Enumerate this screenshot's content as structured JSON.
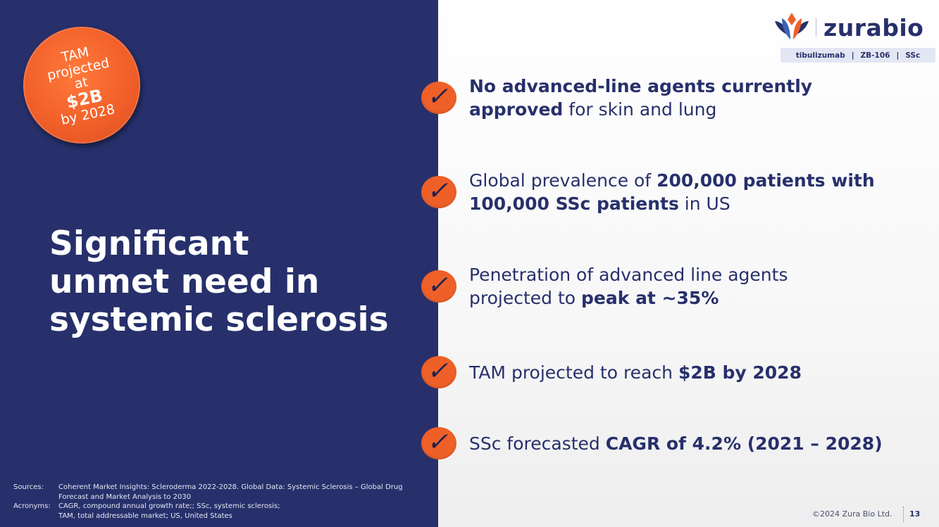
{
  "badge": {
    "line1": "TAM",
    "line2": "projected",
    "line3": "at",
    "line4": "$2B",
    "line5": "by 2028"
  },
  "headline": {
    "line1": "Significant",
    "line2": "unmet need in",
    "line3": "systemic sclerosis"
  },
  "footnotes": {
    "sources_label": "Sources:",
    "sources_text": "Coherent Market Insights: Scleroderma 2022-2028. Global Data: Systemic Sclerosis – Global Drug Forecast and Market Analysis to 2030",
    "acronyms_label": "Acronyms:",
    "acronyms_line1": "CAGR, compound annual growth rate;; SSc, systemic sclerosis;",
    "acronyms_line2": "TAM, total addressable market; US, United States"
  },
  "logo": {
    "name": "zurabio",
    "icon": "zurabio-lotus-icon"
  },
  "tagbar": {
    "item1": "tibulizumab",
    "item2": "ZB-106",
    "item3": "SSc",
    "separator": "|"
  },
  "bullets": [
    {
      "check": "✓",
      "bold1": "No advanced-line agents currently",
      "bold2": "approved",
      "rest": " for skin and lung"
    },
    {
      "check": "✓",
      "pre": "Global prevalence of ",
      "bold1": "200,000 patients with",
      "bold2": "100,000 SSc patients",
      "rest": " in US"
    },
    {
      "check": "✓",
      "line1": "Penetration of advanced line agents",
      "pre": "projected to ",
      "bold": "peak at ~35%"
    },
    {
      "check": "✓",
      "pre": "TAM projected to reach ",
      "bold": "$2B by 2028"
    },
    {
      "check": "✓",
      "pre": "SSc forecasted ",
      "bold": "CAGR of 4.2% (2021 – 2028)"
    }
  ],
  "footer": {
    "copyright": "©2024 Zura Bio Ltd.",
    "page_number": "13"
  },
  "colors": {
    "navy": "#27306b",
    "orange": "#ef6028",
    "white": "#ffffff"
  }
}
